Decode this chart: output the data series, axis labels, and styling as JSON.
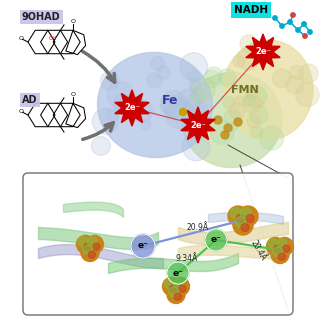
{
  "background_color": "#ffffff",
  "label_9OHAD": "9OHAD",
  "label_AD": "AD",
  "label_Fe": "Fe",
  "label_FMN": "FMN",
  "label_NADH": "NADH",
  "label_2eminus": "2e⁻",
  "label_eminus": "e⁻",
  "dist1": "20.9Å",
  "dist2": "9.34Å",
  "dist3": "20.4Å",
  "protein1_color": "#b8c8e8",
  "protein2_color": "#c8e0b0",
  "protein3_color": "#e8e0a8",
  "label_bg_9ohad": "#c8c0e8",
  "label_bg_ad": "#c8c0e8",
  "label_bg_nadh": "#00e0e0",
  "red_burst_color": "#cc0000",
  "arrow_color": "#707070",
  "electron_blue": "#8090d8",
  "electron_green": "#50c050",
  "fe_color": "#3838a0",
  "fmn_color": "#707020",
  "nadh_teal": "#00aacc",
  "nadh_red": "#cc4444",
  "sphere_orange": "#c8841a",
  "sphere_green": "#8ab840",
  "sphere_red": "#cc3322",
  "inset_line_color": "#444444"
}
